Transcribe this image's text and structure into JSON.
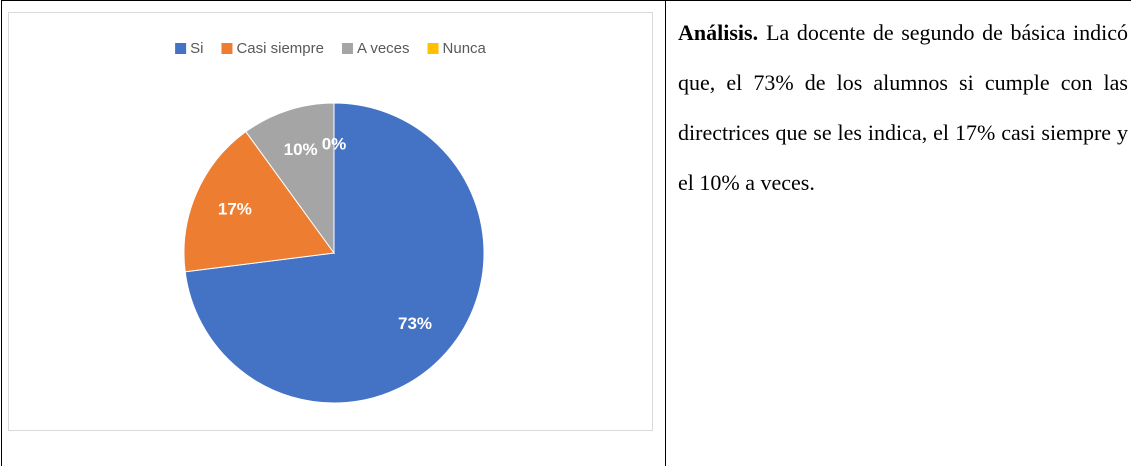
{
  "chart_data": {
    "type": "pie",
    "categories": [
      "Si",
      "Casi siempre",
      "A veces",
      "Nunca"
    ],
    "values": [
      73,
      17,
      10,
      0
    ],
    "value_labels": [
      "73%",
      "17%",
      "10%",
      "0%"
    ],
    "colors": [
      "#4472c4",
      "#ed7d31",
      "#a5a5a5",
      "#ffc000"
    ],
    "legend": "top"
  },
  "analysis": {
    "heading": "Análisis.",
    "text": "La docente de segundo de básica indicó que, el 73% de los alumnos si cumple con las directrices que se les indica, el 17% casi siempre y el 10% a veces."
  }
}
